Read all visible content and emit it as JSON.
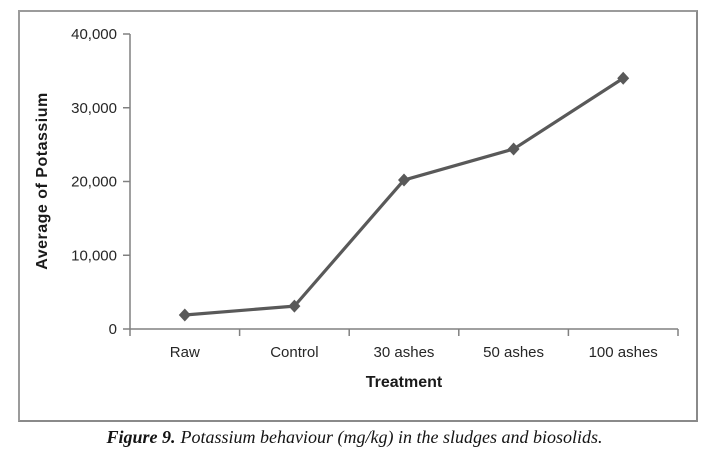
{
  "figure": {
    "caption_label": "Figure 9.",
    "caption_text": "Potassium behaviour (mg/kg) in the sludges and biosolids."
  },
  "chart_data": {
    "type": "line",
    "title": "",
    "xlabel": "Treatment",
    "ylabel": "Average of Potassium",
    "categories": [
      "Raw",
      "Control",
      "30 ashes",
      "50 ashes",
      "100 ashes"
    ],
    "series": [
      {
        "name": "Average of Potassium",
        "values": [
          1900,
          3100,
          20200,
          24400,
          34000
        ]
      }
    ],
    "ylim": [
      0,
      40000
    ],
    "ytick_interval": 10000,
    "ytick_labels": [
      "0",
      "10,000",
      "20,000",
      "30,000",
      "40,000"
    ],
    "grid": false,
    "legend": "none",
    "marker": "diamond",
    "line_color": "#595959",
    "axis_color": "#808080",
    "text_color": "#262626"
  }
}
